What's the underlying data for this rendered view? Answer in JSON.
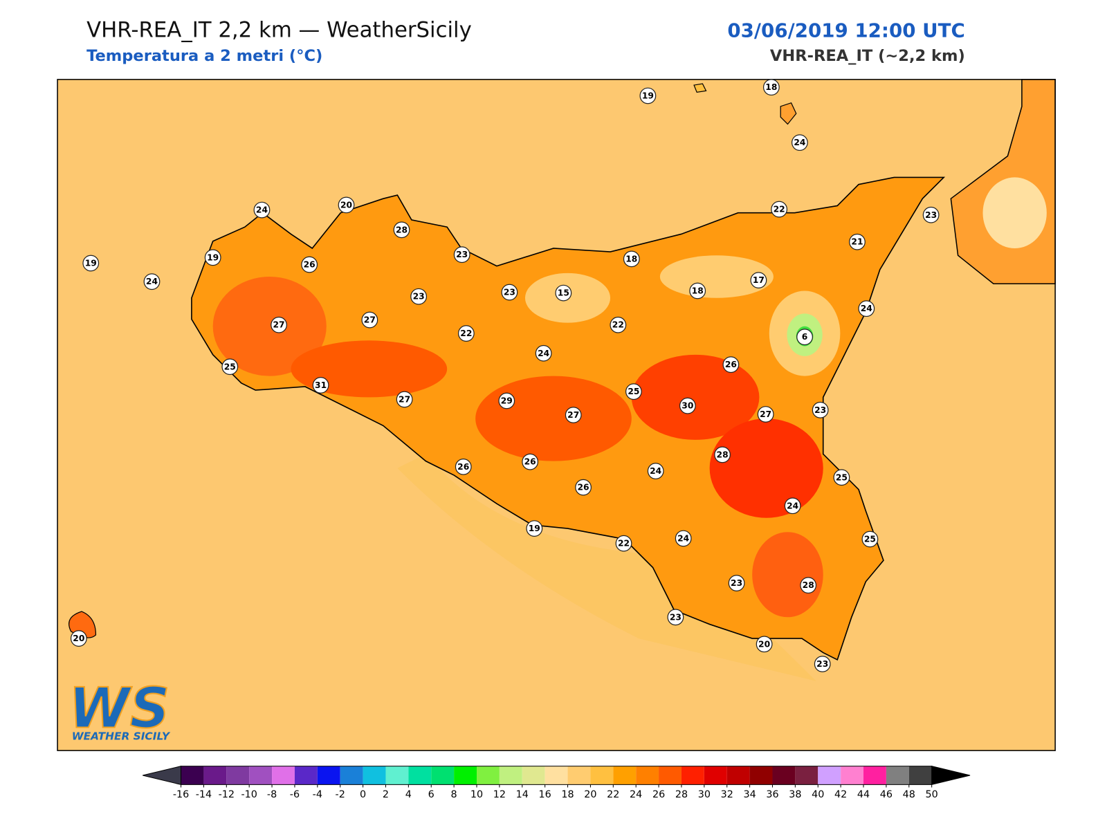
{
  "header": {
    "title": "VHR-REA_IT 2,2 km — WeatherSicily",
    "subtitle": "Temperatura a 2 metri (°C)",
    "datetime": "03/06/2019 12:00 UTC",
    "model": "VHR-REA_IT (~2,2 km)"
  },
  "stations": [
    19,
    18,
    24,
    24,
    20,
    28,
    22,
    23,
    19,
    19,
    24,
    26,
    23,
    18,
    21,
    23,
    23,
    15,
    18,
    17,
    27,
    27,
    22,
    22,
    24,
    6,
    25,
    24,
    26,
    31,
    27,
    29,
    27,
    25,
    30,
    27,
    23,
    28,
    26,
    26,
    24,
    26,
    25,
    24,
    19,
    22,
    24,
    25,
    23,
    28,
    23,
    20,
    20,
    23
  ],
  "colorbar": {
    "ticks": [
      -16,
      -14,
      -12,
      -10,
      -8,
      -6,
      -4,
      -2,
      0,
      2,
      4,
      6,
      8,
      10,
      12,
      14,
      16,
      18,
      20,
      22,
      24,
      26,
      28,
      30,
      32,
      34,
      36,
      38,
      40,
      42,
      44,
      46,
      48,
      50
    ],
    "colors": [
      "#3b0050",
      "#6a1a8a",
      "#7f3aa0",
      "#a050c0",
      "#e070e8",
      "#5a28c8",
      "#0a14f0",
      "#1a80d8",
      "#10c0e0",
      "#60f0d0",
      "#00e0a0",
      "#00e070",
      "#00f000",
      "#80f040",
      "#c0f080",
      "#e0e890",
      "#ffe0a0",
      "#ffcc70",
      "#ffc040",
      "#ffa000",
      "#ff8000",
      "#ff5a00",
      "#ff2000",
      "#e00000",
      "#c00000",
      "#900000",
      "#6a0020",
      "#7a2040",
      "#d0a0ff",
      "#ff80d0",
      "#ff20a0",
      "#808080",
      "#404040"
    ],
    "under_color": "#3a3a4a",
    "over_color": "#000000"
  },
  "logo": {
    "mark": "WS",
    "text": "WEATHER SICILY"
  }
}
